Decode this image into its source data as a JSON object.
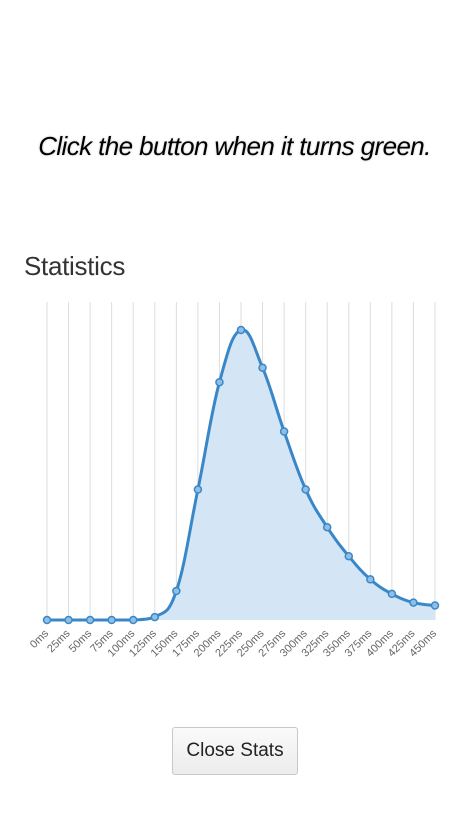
{
  "instruction": "Click the button when it turns green.",
  "stats_title": "Statistics",
  "close_button_label": "Close Stats",
  "colors": {
    "line": "#3a87c8",
    "fill": "#d4e6f6",
    "grid": "#dddddd"
  },
  "chart_data": {
    "type": "area",
    "x": [
      "0ms",
      "25ms",
      "50ms",
      "75ms",
      "100ms",
      "125ms",
      "150ms",
      "175ms",
      "200ms",
      "225ms",
      "250ms",
      "275ms",
      "300ms",
      "325ms",
      "350ms",
      "375ms",
      "400ms",
      "425ms",
      "450ms"
    ],
    "values": [
      0,
      0,
      0,
      0,
      0,
      1,
      10,
      45,
      82,
      100,
      87,
      65,
      45,
      32,
      22,
      14,
      9,
      6,
      5
    ],
    "ylim": [
      0,
      100
    ],
    "grid": true,
    "title": "",
    "xlabel": "",
    "ylabel": ""
  }
}
